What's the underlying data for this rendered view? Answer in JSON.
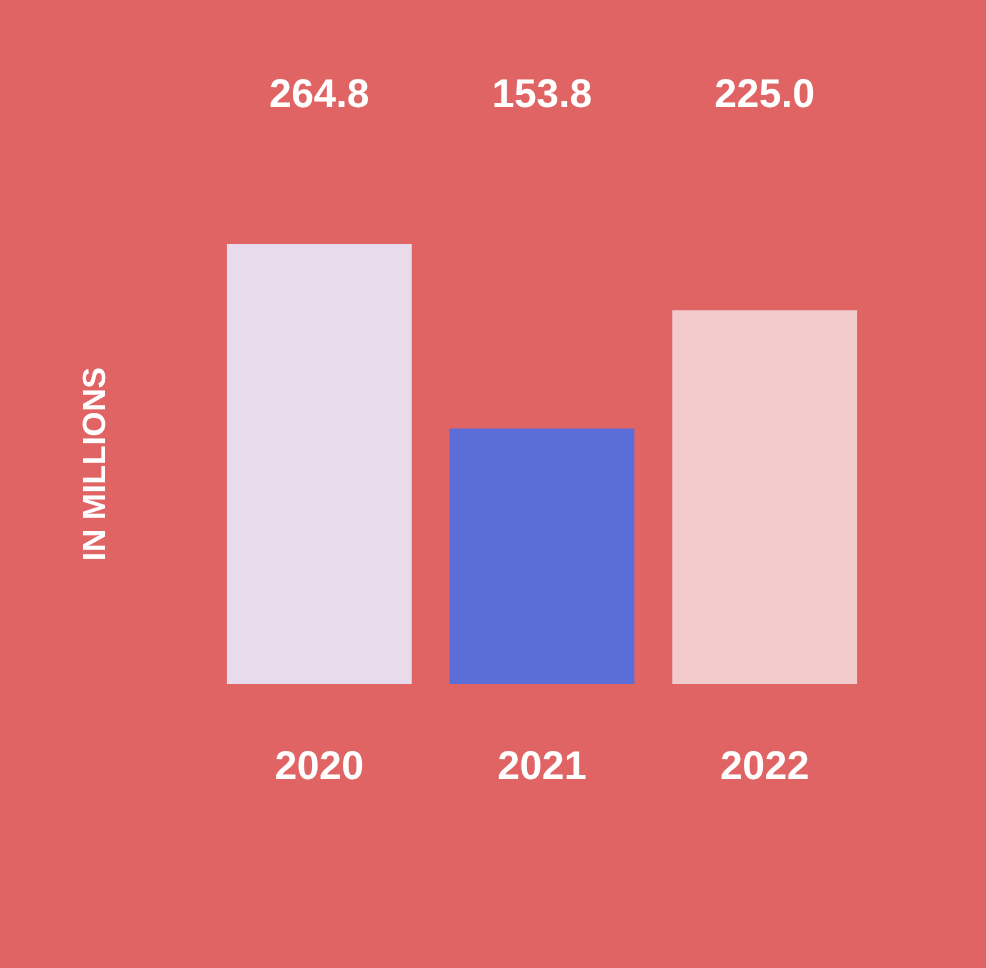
{
  "chart_data": {
    "type": "bar",
    "ylabel": "IN MILLIONS",
    "categories": [
      "2020",
      "2021",
      "2022"
    ],
    "values": [
      264.8,
      153.8,
      225.0
    ],
    "colors": [
      "#e8dcec",
      "#5b6ed8",
      "#f2cccc"
    ],
    "value_labels": [
      "264.8",
      "153.8",
      "225.0"
    ],
    "grid": false,
    "legend": false
  }
}
